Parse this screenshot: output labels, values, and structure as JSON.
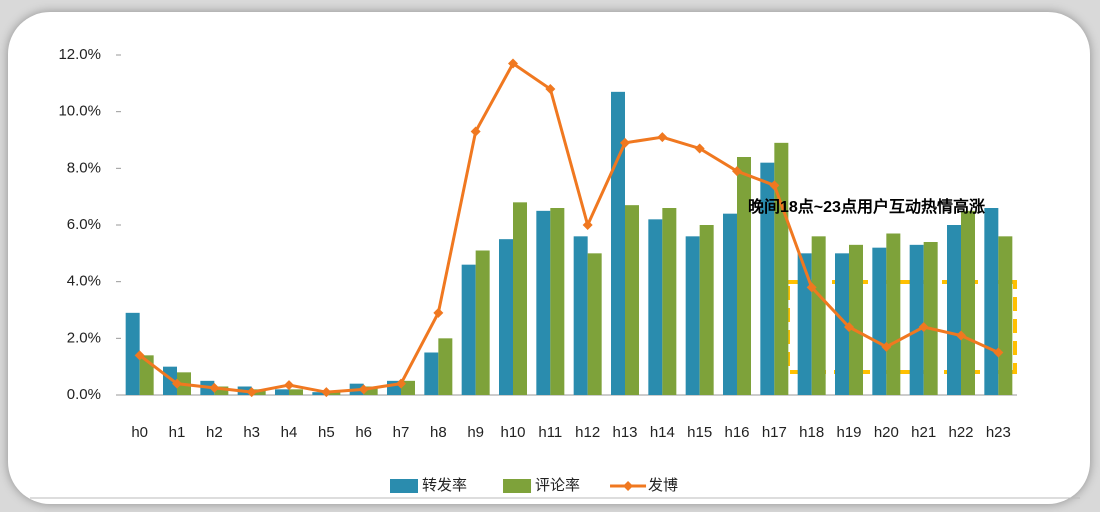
{
  "chart_data": {
    "type": "bar_line",
    "annotation": "晚间18点~23点用户互动热情高涨",
    "categories": [
      "h0",
      "h1",
      "h2",
      "h3",
      "h4",
      "h5",
      "h6",
      "h7",
      "h8",
      "h9",
      "h10",
      "h11",
      "h12",
      "h13",
      "h14",
      "h15",
      "h16",
      "h17",
      "h18",
      "h19",
      "h20",
      "h21",
      "h22",
      "h23"
    ],
    "series": [
      {
        "name": "转发率",
        "type": "bar",
        "color": "#2a8cae",
        "values": [
          2.9,
          1.0,
          0.5,
          0.3,
          0.2,
          0.1,
          0.4,
          0.5,
          1.5,
          4.6,
          5.5,
          6.5,
          5.6,
          10.7,
          6.2,
          5.6,
          6.4,
          8.2,
          5.0,
          5.0,
          5.2,
          5.3,
          6.0,
          6.6
        ]
      },
      {
        "name": "评论率",
        "type": "bar",
        "color": "#7ea23a",
        "values": [
          1.4,
          0.8,
          0.3,
          0.2,
          0.2,
          0.1,
          0.3,
          0.5,
          2.0,
          5.1,
          6.8,
          6.6,
          5.0,
          6.7,
          6.6,
          6.0,
          8.4,
          8.9,
          5.6,
          5.3,
          5.7,
          5.4,
          6.5,
          5.6
        ]
      },
      {
        "name": "发博",
        "type": "line",
        "color": "#f07820",
        "values": [
          1.4,
          0.4,
          0.25,
          0.1,
          0.35,
          0.1,
          0.2,
          0.4,
          2.9,
          9.3,
          11.7,
          10.8,
          6.0,
          8.9,
          9.1,
          8.7,
          7.9,
          7.4,
          3.8,
          2.4,
          1.7,
          2.4,
          2.1,
          1.5
        ]
      }
    ],
    "ylim": [
      0,
      12
    ],
    "yticks": [
      {
        "value": 0,
        "label": "0.0%"
      },
      {
        "value": 2,
        "label": "2.0%"
      },
      {
        "value": 4,
        "label": "4.0%"
      },
      {
        "value": 6,
        "label": "6.0%"
      },
      {
        "value": 8,
        "label": "8.0%"
      },
      {
        "value": 10,
        "label": "10.0%"
      },
      {
        "value": 12,
        "label": "12.0%"
      }
    ],
    "legend": "bottom"
  }
}
